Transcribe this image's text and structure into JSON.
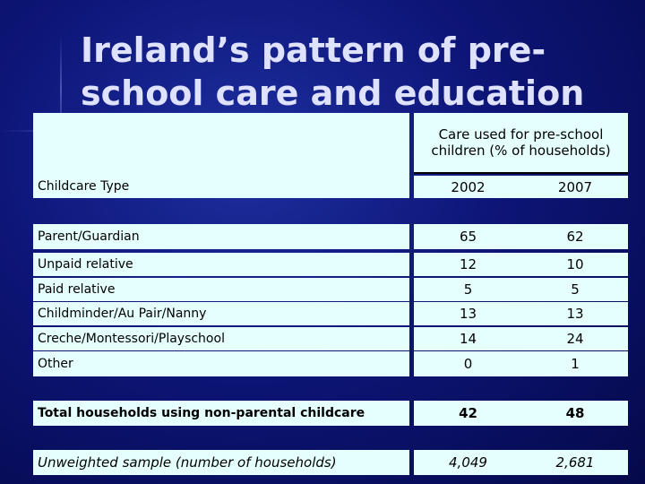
{
  "title": "Ireland’s pattern of pre-school care and education",
  "table": {
    "group_header": "Care used for pre-school children (% of households)",
    "type_header": "Childcare Type",
    "years": [
      "2002",
      "2007"
    ],
    "rows": [
      {
        "label": "Parent/Guardian",
        "v2002": "65",
        "v2007": "62"
      },
      {
        "label": "Unpaid relative",
        "v2002": "12",
        "v2007": "10"
      },
      {
        "label": "Paid relative",
        "v2002": "5",
        "v2007": "5"
      },
      {
        "label": "Childminder/Au Pair/Nanny",
        "v2002": "13",
        "v2007": "13"
      },
      {
        "label": "Creche/Montessori/Playschool",
        "v2002": "14",
        "v2007": "24"
      },
      {
        "label": "Other",
        "v2002": "0",
        "v2007": "1"
      }
    ],
    "total": {
      "label": "Total households using non-parental childcare",
      "v2002": "42",
      "v2007": "48"
    },
    "sample": {
      "label": "Unweighted sample (number of households)",
      "v2002": "4,049",
      "v2007": "2,681"
    }
  }
}
